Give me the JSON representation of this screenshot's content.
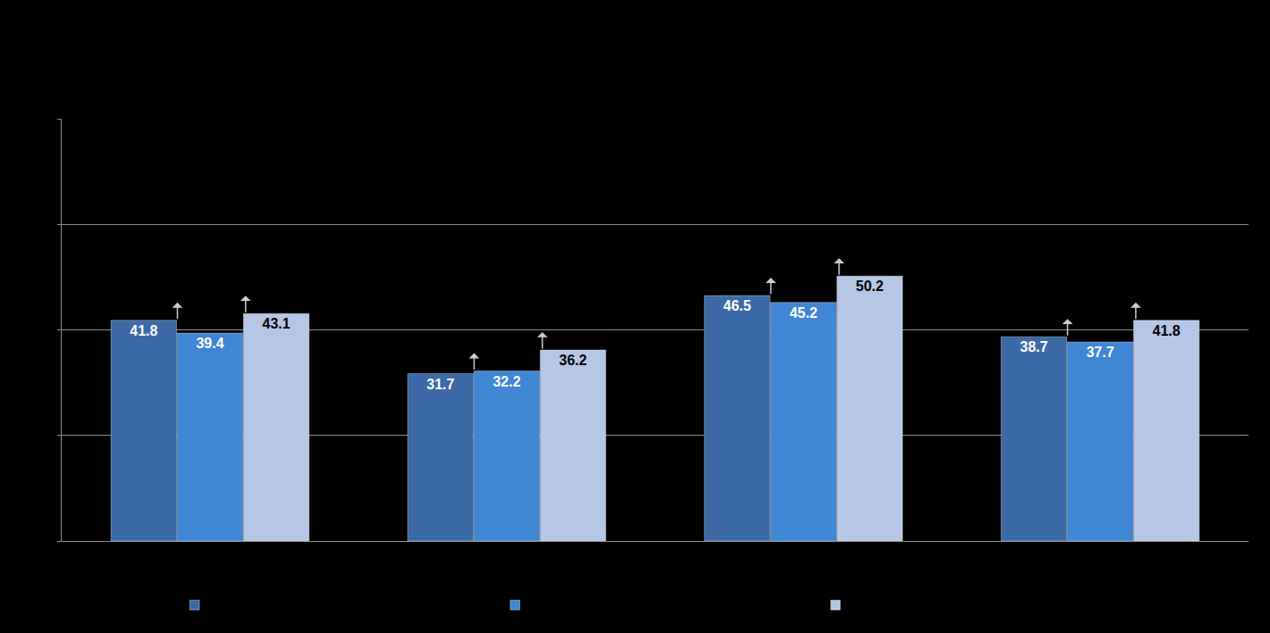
{
  "chart_data": {
    "type": "bar",
    "categories": [
      null,
      null,
      null,
      null
    ],
    "series": [
      {
        "color": "#3b6aa6",
        "values": [
          41.8,
          31.7,
          46.5,
          38.7
        ]
      },
      {
        "color": "#3f86d4",
        "values": [
          39.4,
          32.2,
          45.2,
          37.7
        ]
      },
      {
        "color": "#b6c6e6",
        "values": [
          43.1,
          36.2,
          50.2,
          41.8
        ]
      }
    ],
    "ylim": [
      0,
      80
    ],
    "yticks": [
      0,
      20,
      40,
      60,
      80
    ],
    "grid": true,
    "data_labels": true,
    "tick_labels": false,
    "legend": "bottom"
  }
}
